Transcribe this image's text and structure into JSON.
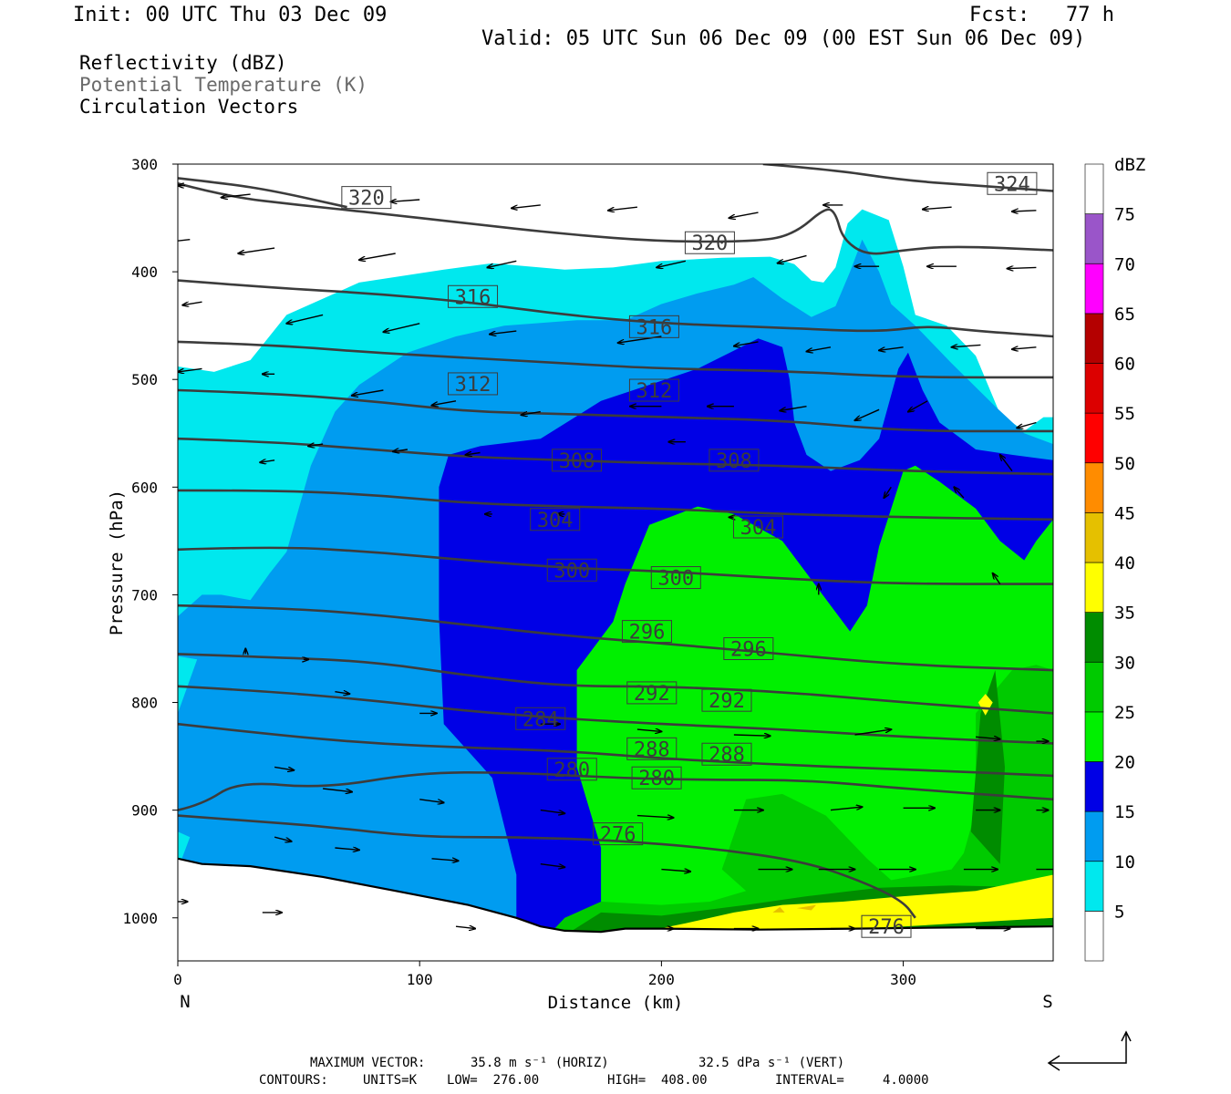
{
  "header": {
    "init": "Init: 00 UTC Thu 03 Dec 09",
    "fcst": "Fcst:   77 h",
    "valid": "Valid: 05 UTC Sun 06 Dec 09 (00 EST Sun 06 Dec 09)"
  },
  "fields": {
    "reflectivity": "Reflectivity (dBZ)",
    "theta": "Potential Temperature (K)",
    "vectors": "Circulation Vectors"
  },
  "footer": {
    "maxvec_label": "MAXIMUM VECTOR:",
    "maxvec_horiz": "35.8 m s⁻¹ (HORIZ)",
    "maxvec_vert": "32.5 dPa s⁻¹ (VERT)",
    "contours_label": "CONTOURS:",
    "contours_units": "UNITS=K",
    "contours_low": "LOW=  276.00",
    "contours_high": "HIGH=  408.00",
    "contours_interval": "INTERVAL=     4.0000"
  },
  "colors": {
    "contour": "#3c3c3c",
    "ground": "#ffffff"
  },
  "chart_data": {
    "type": "heatmap",
    "xlabel": "Distance (km)",
    "ylabel": "Pressure (hPa)",
    "xlim": [
      0,
      362
    ],
    "ylim": [
      1040,
      300
    ],
    "x_ticks": [
      "0",
      "100",
      "200",
      "300"
    ],
    "y_ticks": [
      "300",
      "400",
      "500",
      "600",
      "700",
      "800",
      "900",
      "1000"
    ],
    "x_end_labels": {
      "left": "N",
      "right": "S"
    },
    "legend": {
      "title": "dBZ",
      "labels": [
        "5",
        "10",
        "15",
        "20",
        "25",
        "30",
        "35",
        "40",
        "45",
        "50",
        "55",
        "60",
        "65",
        "70",
        "75"
      ],
      "bins": [
        {
          "min": 0,
          "color": "#ffffff"
        },
        {
          "min": 5,
          "color": "#00e8ee"
        },
        {
          "min": 10,
          "color": "#009cf0"
        },
        {
          "min": 15,
          "color": "#0000e6"
        },
        {
          "min": 20,
          "color": "#00f000"
        },
        {
          "min": 25,
          "color": "#00ca00"
        },
        {
          "min": 30,
          "color": "#008c00"
        },
        {
          "min": 35,
          "color": "#ffff00"
        },
        {
          "min": 40,
          "color": "#e5c000"
        },
        {
          "min": 45,
          "color": "#ff8c00"
        },
        {
          "min": 50,
          "color": "#ff0000"
        },
        {
          "min": 55,
          "color": "#dc0000"
        },
        {
          "min": 60,
          "color": "#b40000"
        },
        {
          "min": 65,
          "color": "#ff00ff"
        },
        {
          "min": 70,
          "color": "#9a55c9"
        },
        {
          "min": 75,
          "color": "#ffffff"
        }
      ]
    },
    "reflectivity_regions": [
      {
        "dbz": 5,
        "points": [
          [
            0,
            488
          ],
          [
            15,
            493
          ],
          [
            30,
            482
          ],
          [
            45,
            440
          ],
          [
            75,
            410
          ],
          [
            110,
            398
          ],
          [
            130,
            392
          ],
          [
            160,
            398
          ],
          [
            180,
            396
          ],
          [
            200,
            390
          ],
          [
            225,
            387
          ],
          [
            245,
            386
          ],
          [
            255,
            393
          ],
          [
            262,
            408
          ],
          [
            267,
            410
          ],
          [
            272,
            396
          ],
          [
            277,
            355
          ],
          [
            283,
            342
          ],
          [
            294,
            352
          ],
          [
            300,
            395
          ],
          [
            305,
            440
          ],
          [
            318,
            450
          ],
          [
            330,
            478
          ],
          [
            340,
            532
          ],
          [
            350,
            548
          ],
          [
            358,
            535
          ],
          [
            362,
            535
          ],
          [
            362,
            1012
          ],
          [
            0,
            1012
          ]
        ]
      },
      {
        "dbz": 10,
        "points": [
          [
            0,
            1012
          ],
          [
            0,
            955
          ],
          [
            5,
            925
          ],
          [
            0,
            920
          ],
          [
            0,
            870
          ],
          [
            0,
            810
          ],
          [
            8,
            760
          ],
          [
            0,
            757
          ],
          [
            0,
            720
          ],
          [
            10,
            700
          ],
          [
            18,
            700
          ],
          [
            30,
            705
          ],
          [
            38,
            680
          ],
          [
            45,
            660
          ],
          [
            55,
            580
          ],
          [
            65,
            530
          ],
          [
            75,
            505
          ],
          [
            95,
            475
          ],
          [
            115,
            460
          ],
          [
            135,
            450
          ],
          [
            165,
            445
          ],
          [
            185,
            445
          ],
          [
            200,
            430
          ],
          [
            215,
            420
          ],
          [
            230,
            412
          ],
          [
            238,
            405
          ],
          [
            250,
            425
          ],
          [
            262,
            442
          ],
          [
            272,
            432
          ],
          [
            278,
            400
          ],
          [
            283,
            370
          ],
          [
            290,
            400
          ],
          [
            295,
            430
          ],
          [
            305,
            450
          ],
          [
            320,
            485
          ],
          [
            338,
            525
          ],
          [
            350,
            550
          ],
          [
            362,
            560
          ],
          [
            362,
            1012
          ]
        ]
      },
      {
        "dbz": 15,
        "points": [
          [
            150,
            1012
          ],
          [
            140,
            1005
          ],
          [
            140,
            960
          ],
          [
            130,
            870
          ],
          [
            110,
            820
          ],
          [
            108,
            720
          ],
          [
            108,
            600
          ],
          [
            112,
            570
          ],
          [
            125,
            562
          ],
          [
            150,
            555
          ],
          [
            175,
            520
          ],
          [
            195,
            505
          ],
          [
            215,
            490
          ],
          [
            240,
            462
          ],
          [
            250,
            470
          ],
          [
            253,
            500
          ],
          [
            255,
            540
          ],
          [
            260,
            570
          ],
          [
            270,
            585
          ],
          [
            282,
            575
          ],
          [
            290,
            555
          ],
          [
            298,
            490
          ],
          [
            302,
            475
          ],
          [
            308,
            510
          ],
          [
            315,
            540
          ],
          [
            330,
            565
          ],
          [
            345,
            570
          ],
          [
            362,
            575
          ],
          [
            362,
            1012
          ]
        ]
      },
      {
        "dbz": 20,
        "points": [
          [
            155,
            1012
          ],
          [
            175,
            1000
          ],
          [
            175,
            935
          ],
          [
            165,
            860
          ],
          [
            165,
            830
          ],
          [
            165,
            770
          ],
          [
            180,
            725
          ],
          [
            185,
            690
          ],
          [
            195,
            635
          ],
          [
            215,
            618
          ],
          [
            230,
            625
          ],
          [
            250,
            650
          ],
          [
            260,
            680
          ],
          [
            270,
            710
          ],
          [
            278,
            734
          ],
          [
            285,
            710
          ],
          [
            290,
            655
          ],
          [
            300,
            585
          ],
          [
            305,
            580
          ],
          [
            315,
            595
          ],
          [
            330,
            620
          ],
          [
            340,
            650
          ],
          [
            350,
            668
          ],
          [
            355,
            650
          ],
          [
            362,
            630
          ],
          [
            362,
            1012
          ]
        ]
      },
      {
        "dbz": 25,
        "points": [
          [
            155,
            1012
          ],
          [
            160,
            1000
          ],
          [
            175,
            985
          ],
          [
            200,
            988
          ],
          [
            220,
            985
          ],
          [
            235,
            975
          ],
          [
            225,
            955
          ],
          [
            235,
            890
          ],
          [
            250,
            885
          ],
          [
            268,
            905
          ],
          [
            285,
            945
          ],
          [
            295,
            965
          ],
          [
            320,
            955
          ],
          [
            325,
            940
          ],
          [
            330,
            900
          ],
          [
            330,
            810
          ],
          [
            345,
            770
          ],
          [
            355,
            765
          ],
          [
            362,
            770
          ],
          [
            362,
            1012
          ]
        ]
      },
      {
        "dbz": 30,
        "points": [
          [
            163,
            1012
          ],
          [
            175,
            995
          ],
          [
            200,
            998
          ],
          [
            235,
            988
          ],
          [
            260,
            980
          ],
          [
            290,
            972
          ],
          [
            320,
            970
          ],
          [
            362,
            972
          ],
          [
            362,
            1012
          ]
        ]
      },
      {
        "dbz": 30,
        "points": [
          [
            328,
            920
          ],
          [
            332,
            810
          ],
          [
            338,
            770
          ],
          [
            342,
            860
          ],
          [
            340,
            950
          ]
        ]
      },
      {
        "dbz": 35,
        "points": [
          [
            195,
            1012
          ],
          [
            210,
            1005
          ],
          [
            230,
            995
          ],
          [
            250,
            988
          ],
          [
            275,
            985
          ],
          [
            300,
            980
          ],
          [
            330,
            975
          ],
          [
            362,
            960
          ],
          [
            362,
            1000
          ],
          [
            300,
            1008
          ],
          [
            260,
            1012
          ]
        ]
      },
      {
        "dbz": 35,
        "points": [
          [
            331,
            800
          ],
          [
            334,
            792
          ],
          [
            337,
            800
          ],
          [
            334,
            812
          ]
        ]
      },
      {
        "dbz": 40,
        "points": [
          [
            246,
            995
          ],
          [
            249,
            990
          ],
          [
            251,
            995
          ]
        ]
      },
      {
        "dbz": 40,
        "points": [
          [
            256,
            991
          ],
          [
            264,
            988
          ],
          [
            262,
            993
          ]
        ]
      }
    ],
    "theta_contour_values": [
      276,
      280,
      284,
      288,
      292,
      296,
      300,
      304,
      308,
      312,
      316,
      320,
      324
    ]
  }
}
